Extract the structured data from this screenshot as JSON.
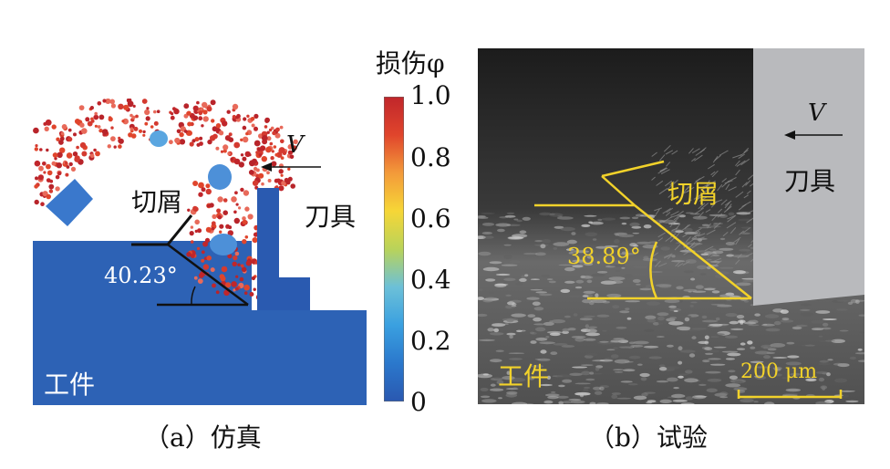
{
  "simulation": {
    "caption": "（a）仿真",
    "chip_label": "切屑",
    "tool_label": "刀具",
    "workpiece_label": "工件",
    "velocity_label": "V",
    "shear_angle_label": "40.23°"
  },
  "colorbar": {
    "title": "损伤φ",
    "ticks": [
      "1.0",
      "0.8",
      "0.6",
      "0.4",
      "0.2",
      "0"
    ],
    "colors": [
      "#c0262b",
      "#e0452c",
      "#f39a3a",
      "#f6d637",
      "#b9d35a",
      "#6cc0d8",
      "#3aa0e0",
      "#2b78cc",
      "#2a58b0"
    ]
  },
  "experiment": {
    "caption": "（b）试验",
    "chip_label": "切屑",
    "tool_label": "刀具",
    "workpiece_label": "工件",
    "velocity_label": "V",
    "shear_angle_label": "38.89°",
    "scale_bar_label": "200 μm",
    "annotation_color": "#f2d22a"
  }
}
